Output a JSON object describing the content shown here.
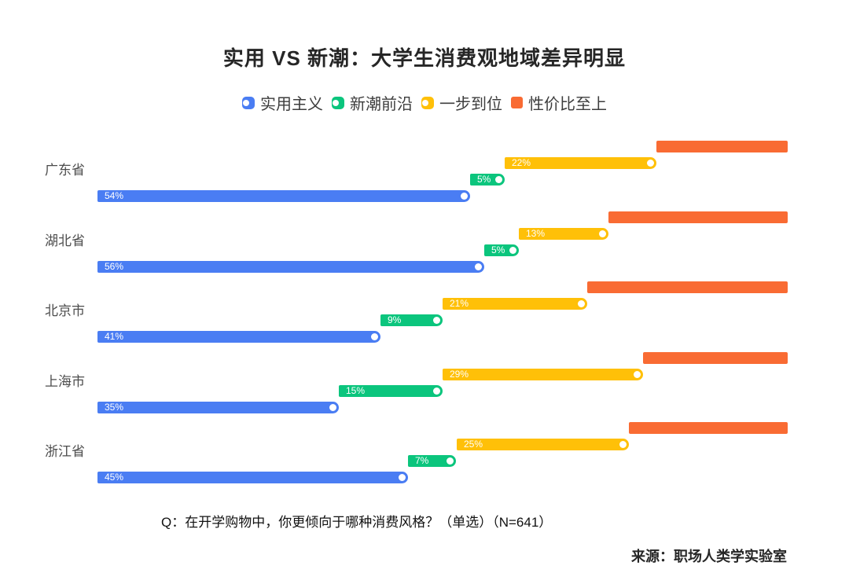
{
  "title": "实用 VS 新潮：大学生消费观地域差异明显",
  "legend": [
    {
      "label": "实用主义",
      "color": "#4A7DF3",
      "marker": "pill"
    },
    {
      "label": "新潮前沿",
      "color": "#0BC57D",
      "marker": "pill"
    },
    {
      "label": "一步到位",
      "color": "#FFC008",
      "marker": "pill"
    },
    {
      "label": "性价比至上",
      "color": "#F96B33",
      "marker": "square"
    }
  ],
  "chart_data": {
    "type": "bar",
    "orientation": "horizontal-waterfall-stacked",
    "title": "实用 VS 新潮：大学生消费观地域差异明显",
    "categories": [
      "广东省",
      "湖北省",
      "北京市",
      "上海市",
      "浙江省"
    ],
    "series": [
      {
        "name": "实用主义",
        "color": "#4A7DF3",
        "values": [
          54,
          56,
          41,
          35,
          45
        ],
        "labels_visible": true
      },
      {
        "name": "新潮前沿",
        "color": "#0BC57D",
        "values": [
          5,
          5,
          9,
          15,
          7
        ],
        "labels_visible": true
      },
      {
        "name": "一步到位",
        "color": "#FFC008",
        "values": [
          22,
          13,
          21,
          29,
          25
        ],
        "labels_visible": true
      },
      {
        "name": "性价比至上",
        "color": "#F96B33",
        "values": [
          19,
          26,
          29,
          21,
          23
        ],
        "labels_visible": false
      }
    ],
    "value_suffix": "%",
    "xlim": [
      0,
      100
    ],
    "grid": false,
    "legend_position": "top-center"
  },
  "footer": {
    "question": "Q：在开学购物中，你更倾向于哪种消费风格？（单选）（N=641）",
    "source": "来源：职场人类学实验室"
  }
}
